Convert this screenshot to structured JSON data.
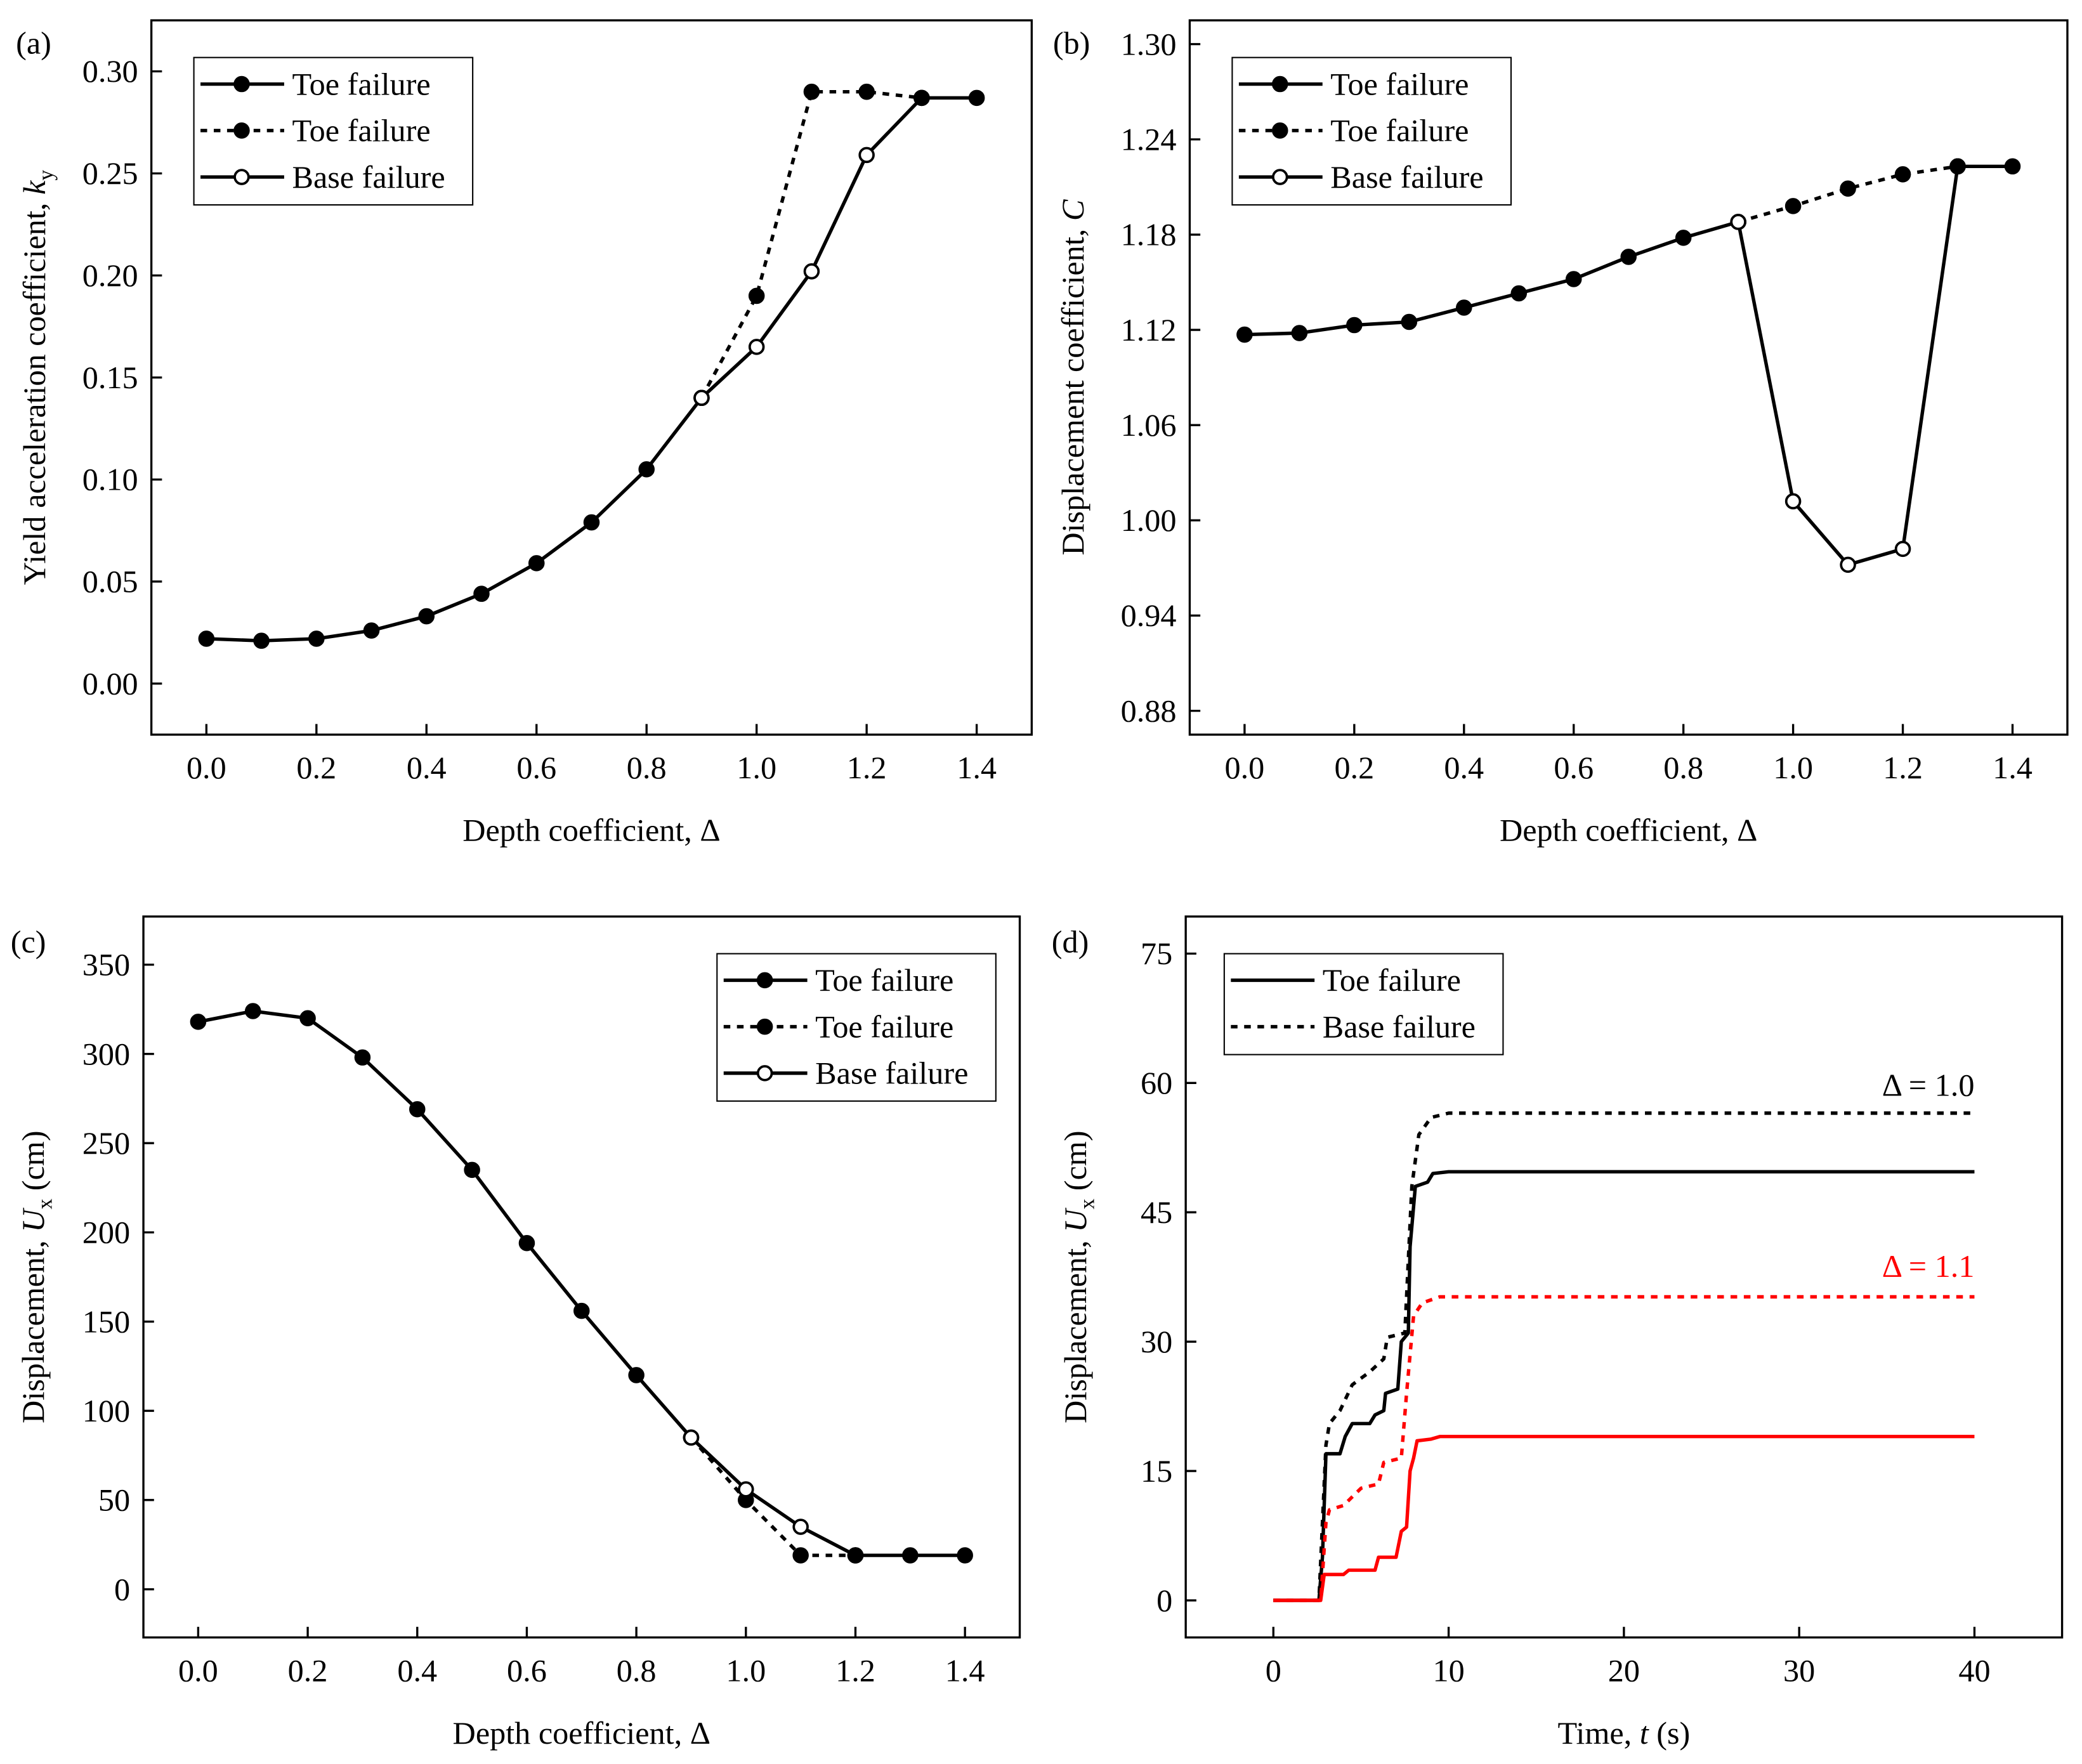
{
  "chart_data": [
    {
      "panel": "(a)",
      "type": "line",
      "xlabel": "Depth coefficient, Δ",
      "ylabel": {
        "text": "Yield acceleration coefficient, ",
        "var": "k",
        "sub": "y"
      },
      "xlim": [
        -0.1,
        1.5
      ],
      "ylim": [
        -0.025,
        0.325
      ],
      "xticks": [
        "0.0",
        "0.2",
        "0.4",
        "0.6",
        "0.8",
        "1.0",
        "1.2",
        "1.4"
      ],
      "yticks": [
        "0.00",
        "0.05",
        "0.10",
        "0.15",
        "0.20",
        "0.25",
        "0.30"
      ],
      "legend": {
        "position": "top-left",
        "entries": [
          {
            "label": "Toe failure",
            "style": "solid",
            "marker": "filled"
          },
          {
            "label": "Toe failure",
            "style": "dotted",
            "marker": "filled"
          },
          {
            "label": "Base failure",
            "style": "solid",
            "marker": "open"
          }
        ]
      },
      "series": [
        {
          "name": "Toe failure",
          "style": "solid",
          "marker": "filled",
          "x": [
            0,
            0.1,
            0.2,
            0.3,
            0.4,
            0.5,
            0.6,
            0.7,
            0.8,
            0.9
          ],
          "y": [
            0.022,
            0.021,
            0.022,
            0.026,
            0.033,
            0.044,
            0.059,
            0.079,
            0.105,
            0.14
          ]
        },
        {
          "name": "Toe failure",
          "style": "dotted",
          "marker": "filled",
          "x": [
            0.9,
            1.0,
            1.1,
            1.2,
            1.3
          ],
          "y": [
            0.14,
            0.19,
            0.29,
            0.29,
            0.287
          ]
        },
        {
          "name": "Base failure",
          "style": "solid",
          "marker": "open",
          "x": [
            0.9,
            1.0,
            1.1,
            1.2,
            1.3
          ],
          "y": [
            0.14,
            0.165,
            0.202,
            0.259,
            0.287
          ]
        },
        {
          "name": "Toe failure",
          "style": "solid",
          "marker": "filled",
          "x": [
            1.3,
            1.4
          ],
          "y": [
            0.287,
            0.287
          ]
        }
      ]
    },
    {
      "panel": "(b)",
      "type": "line",
      "xlabel": "Depth coefficient, Δ",
      "ylabel": {
        "text": "Displacement coefficient, ",
        "var": "C",
        "sub": ""
      },
      "xlim": [
        -0.1,
        1.5
      ],
      "ylim": [
        0.865,
        1.315
      ],
      "xticks": [
        "0.0",
        "0.2",
        "0.4",
        "0.6",
        "0.8",
        "1.0",
        "1.2",
        "1.4"
      ],
      "yticks": [
        "0.88",
        "0.94",
        "1.00",
        "1.06",
        "1.12",
        "1.18",
        "1.24",
        "1.30"
      ],
      "legend": {
        "position": "top-left",
        "entries": [
          {
            "label": "Toe failure",
            "style": "solid",
            "marker": "filled"
          },
          {
            "label": "Toe failure",
            "style": "dotted",
            "marker": "filled"
          },
          {
            "label": "Base failure",
            "style": "solid",
            "marker": "open"
          }
        ]
      },
      "series": [
        {
          "name": "Toe failure",
          "style": "solid",
          "marker": "filled",
          "x": [
            0,
            0.1,
            0.2,
            0.3,
            0.4,
            0.5,
            0.6,
            0.7,
            0.8,
            0.9
          ],
          "y": [
            1.117,
            1.118,
            1.123,
            1.125,
            1.134,
            1.143,
            1.152,
            1.166,
            1.178,
            1.188
          ]
        },
        {
          "name": "Toe failure",
          "style": "dotted",
          "marker": "filled",
          "x": [
            0.9,
            1.0,
            1.1,
            1.2,
            1.3
          ],
          "y": [
            1.188,
            1.198,
            1.209,
            1.218,
            1.223
          ]
        },
        {
          "name": "Base failure",
          "style": "solid",
          "marker": "open",
          "x": [
            0.9,
            1.0,
            1.1,
            1.2,
            1.3
          ],
          "y": [
            1.188,
            1.012,
            0.972,
            0.982,
            1.223
          ]
        },
        {
          "name": "Toe failure",
          "style": "solid",
          "marker": "filled",
          "x": [
            1.3,
            1.4
          ],
          "y": [
            1.223,
            1.223
          ]
        }
      ]
    },
    {
      "panel": "(c)",
      "type": "line",
      "xlabel": "Depth coefficient, Δ",
      "ylabel": {
        "text": "Displacement, ",
        "var": "U",
        "sub": "x",
        "unit": " (cm)"
      },
      "xlim": [
        -0.1,
        1.5
      ],
      "ylim": [
        -27,
        377
      ],
      "xticks": [
        "0.0",
        "0.2",
        "0.4",
        "0.6",
        "0.8",
        "1.0",
        "1.2",
        "1.4"
      ],
      "yticks": [
        "0",
        "50",
        "100",
        "150",
        "200",
        "250",
        "300",
        "350"
      ],
      "legend": {
        "position": "top-right",
        "entries": [
          {
            "label": "Toe failure",
            "style": "solid",
            "marker": "filled"
          },
          {
            "label": "Toe failure",
            "style": "dotted",
            "marker": "filled"
          },
          {
            "label": "Base failure",
            "style": "solid",
            "marker": "open"
          }
        ]
      },
      "series": [
        {
          "name": "Toe failure",
          "style": "solid",
          "marker": "filled",
          "x": [
            0,
            0.1,
            0.2,
            0.3,
            0.4,
            0.5,
            0.6,
            0.7,
            0.8,
            0.9
          ],
          "y": [
            318,
            324,
            320,
            298,
            269,
            235,
            194,
            156,
            120,
            85
          ]
        },
        {
          "name": "Toe failure",
          "style": "dotted",
          "marker": "filled",
          "x": [
            0.9,
            1.0,
            1.1,
            1.2
          ],
          "y": [
            85,
            50,
            19,
            19
          ]
        },
        {
          "name": "Base failure",
          "style": "solid",
          "marker": "open",
          "x": [
            0.9,
            1.0,
            1.1,
            1.2
          ],
          "y": [
            85,
            56,
            35,
            19
          ]
        },
        {
          "name": "Toe failure",
          "style": "solid",
          "marker": "filled",
          "x": [
            1.2,
            1.3,
            1.4
          ],
          "y": [
            19,
            19,
            19
          ]
        }
      ]
    },
    {
      "panel": "(d)",
      "type": "line",
      "xlabel": {
        "text": "Time, ",
        "var": "t",
        "unit": " (s)"
      },
      "ylabel": {
        "text": "Displacement, ",
        "var": "U",
        "sub": "x",
        "unit": " (cm)"
      },
      "xlim": [
        -5,
        45
      ],
      "ylim": [
        -4.3,
        79.3
      ],
      "xticks": [
        "0",
        "10",
        "20",
        "30",
        "40"
      ],
      "yticks": [
        "0",
        "15",
        "30",
        "45",
        "60",
        "75"
      ],
      "legend": {
        "position": "top-left",
        "entries": [
          {
            "label": "Toe failure",
            "style": "solid",
            "marker": "none"
          },
          {
            "label": "Base failure",
            "style": "dotted",
            "marker": "none"
          }
        ]
      },
      "annotations": [
        {
          "text": "Δ = 1.0",
          "color": "#000000",
          "x": 40,
          "y": 58.5
        },
        {
          "text": "Δ = 1.1",
          "color": "#ff0000",
          "x": 40,
          "y": 37.5
        }
      ],
      "series": [
        {
          "name": "Toe failure Δ = 1.0",
          "style": "solid",
          "color": "#000000",
          "x": [
            0,
            2.6,
            2.8,
            3.0,
            3.8,
            4.1,
            4.5,
            5.5,
            5.8,
            6.3,
            6.4,
            7.1,
            7.3,
            7.7,
            7.8,
            8.1,
            8.8,
            9.1,
            10,
            40
          ],
          "y": [
            0,
            0,
            5,
            17,
            17,
            19,
            20.5,
            20.5,
            21.5,
            22,
            24,
            24.5,
            30,
            31,
            41,
            48,
            48.5,
            49.5,
            49.7,
            49.7
          ]
        },
        {
          "name": "Base failure Δ = 1.0",
          "style": "dotted",
          "color": "#000000",
          "x": [
            0,
            2.6,
            3.0,
            3.2,
            3.8,
            4.5,
            5.5,
            6.3,
            6.5,
            7.5,
            7.9,
            8.3,
            9,
            10,
            40
          ],
          "y": [
            0,
            0,
            18,
            20.5,
            22,
            25,
            26.5,
            28,
            30.5,
            31,
            48,
            54,
            56,
            56.5,
            56.5
          ]
        },
        {
          "name": "Toe failure Δ = 1.1",
          "style": "solid",
          "color": "#ff0000",
          "x": [
            0,
            2.7,
            2.9,
            4.0,
            4.3,
            5.8,
            6.0,
            7.0,
            7.3,
            7.6,
            7.8,
            8.0,
            8.2,
            9.0,
            9.5,
            40
          ],
          "y": [
            0,
            0,
            3,
            3,
            3.5,
            3.5,
            5,
            5,
            8,
            8.5,
            15,
            16.5,
            18.5,
            18.7,
            19,
            19
          ]
        },
        {
          "name": "Base failure Δ = 1.1",
          "style": "dotted",
          "color": "#ff0000",
          "x": [
            0,
            2.7,
            3.0,
            3.2,
            4.0,
            5.0,
            6.0,
            6.3,
            7.3,
            7.6,
            8.0,
            8.5,
            9.5,
            40
          ],
          "y": [
            0,
            0,
            9,
            10.5,
            11,
            13,
            13.5,
            16,
            16.5,
            24,
            33,
            34.5,
            35.2,
            35.2
          ]
        }
      ]
    }
  ]
}
